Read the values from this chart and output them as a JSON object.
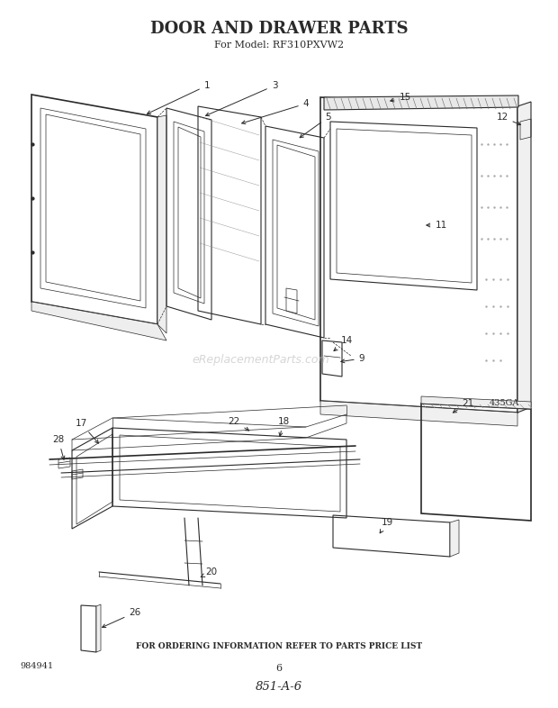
{
  "title": "DOOR AND DRAWER PARTS",
  "subtitle": "For Model: RF310PXVW2",
  "footer_text": "FOR ORDERING INFORMATION REFER TO PARTS PRICE LIST",
  "page_number": "6",
  "part_code": "851-A-6",
  "catalog_number": "984941",
  "diagram_code": "435GA",
  "watermark": "eReplacementParts.com",
  "bg_color": "#ffffff",
  "line_color": "#2a2a2a",
  "watermark_color": "#bbbbbb"
}
